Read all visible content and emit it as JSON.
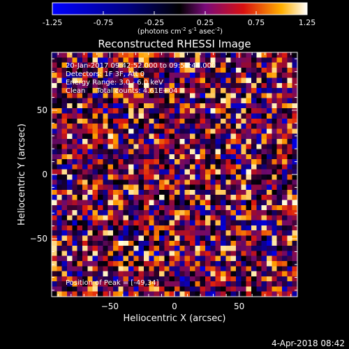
{
  "chart_data": {
    "type": "heatmap",
    "title": "Reconstructed RHESSI Image",
    "xlabel": "Heliocentric X (arcsec)",
    "ylabel": "Heliocentric Y (arcsec)",
    "xlim": [
      -95,
      95
    ],
    "ylim": [
      -95,
      95
    ],
    "xticks": [
      -50,
      0,
      50
    ],
    "yticks": [
      -50,
      0,
      50
    ],
    "grid_cells": 48,
    "colorbar": {
      "range": [
        -1.25,
        1.25
      ],
      "ticks": [
        "-1.25",
        "-0.75",
        "-0.25",
        "0.25",
        "0.75",
        "1.25"
      ],
      "label_main": "(photons cm",
      "label_sup1": "-2",
      "label_mid": " s",
      "label_sup2": "-1",
      "label_end": " asec",
      "label_sup3": "-2",
      "label_close": ")"
    },
    "annotations": [
      "20-Jan-2017 09:42:52.000 to 09:51:44.000",
      "Detectors: 1F 3F, Att 0",
      "Energy Range: 3.0 - 6.0 keV",
      "Clean     Total counts: 4.61E+04"
    ],
    "peak_text": "Position of Peak = [-49,34]",
    "timestamp": "4-Apr-2018 08:42"
  }
}
